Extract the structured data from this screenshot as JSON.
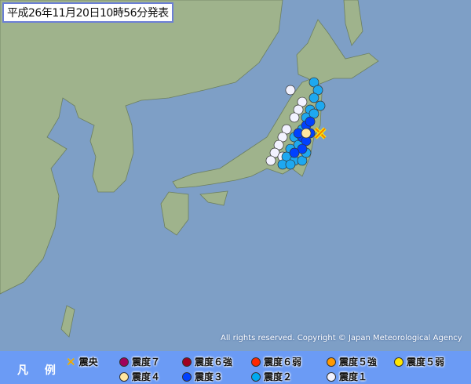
{
  "title": "平成26年11月20日10時56分発表",
  "copyright": "All rights reserved. Copyright © Japan Meteorological Agency",
  "colors": {
    "ocean": "#7e9fc6",
    "land": "#9fb38c",
    "legend_bg": "#6b9bf5"
  },
  "epicenter": {
    "lat": 37.62,
    "lon": 141.25
  },
  "legend": {
    "title": "凡 例",
    "epicenter_label": "震央",
    "items": [
      {
        "label": "震度７",
        "color": "#a0005a"
      },
      {
        "label": "震度６強",
        "color": "#a00020"
      },
      {
        "label": "震度６弱",
        "color": "#ff2800"
      },
      {
        "label": "震度５強",
        "color": "#ff9900"
      },
      {
        "label": "震度５弱",
        "color": "#ffe600"
      },
      {
        "label": "震度４",
        "color": "#ffe6a0"
      },
      {
        "label": "震度３",
        "color": "#0041ff"
      },
      {
        "label": "震度２",
        "color": "#00aaf0"
      },
      {
        "label": "震度１",
        "color": "#f2f2ff"
      }
    ]
  },
  "intensity_colors": {
    "1": "#f2f2ff",
    "2": "#1ea8f0",
    "3": "#0041ff",
    "4": "#ffe6a0"
  },
  "stations": [
    {
      "lat": 39.79,
      "lon": 140.3,
      "i": 1
    },
    {
      "lat": 39.25,
      "lon": 139.99,
      "i": 1
    },
    {
      "lat": 38.71,
      "lon": 139.67,
      "i": 1
    },
    {
      "lat": 37.89,
      "lon": 139.04,
      "i": 1
    },
    {
      "lat": 37.35,
      "lon": 138.72,
      "i": 1
    },
    {
      "lat": 36.8,
      "lon": 138.41,
      "i": 1
    },
    {
      "lat": 36.26,
      "lon": 138.09,
      "i": 1
    },
    {
      "lat": 35.72,
      "lon": 137.77,
      "i": 1
    },
    {
      "lat": 35.99,
      "lon": 138.72,
      "i": 1
    },
    {
      "lat": 40.61,
      "lon": 139.35,
      "i": 1
    },
    {
      "lat": 41.15,
      "lon": 141.25,
      "i": 2
    },
    {
      "lat": 40.61,
      "lon": 141.57,
      "i": 2
    },
    {
      "lat": 40.07,
      "lon": 141.25,
      "i": 2
    },
    {
      "lat": 39.52,
      "lon": 141.76,
      "i": 2
    },
    {
      "lat": 39.25,
      "lon": 140.94,
      "i": 2
    },
    {
      "lat": 38.71,
      "lon": 140.62,
      "i": 2
    },
    {
      "lat": 38.98,
      "lon": 141.25,
      "i": 2
    },
    {
      "lat": 37.89,
      "lon": 140.3,
      "i": 2
    },
    {
      "lat": 37.35,
      "lon": 139.67,
      "i": 2
    },
    {
      "lat": 36.8,
      "lon": 139.99,
      "i": 2
    },
    {
      "lat": 36.53,
      "lon": 139.35,
      "i": 2
    },
    {
      "lat": 35.99,
      "lon": 139.04,
      "i": 2
    },
    {
      "lat": 35.72,
      "lon": 139.67,
      "i": 2
    },
    {
      "lat": 35.72,
      "lon": 140.3,
      "i": 2
    },
    {
      "lat": 36.26,
      "lon": 140.62,
      "i": 2
    },
    {
      "lat": 35.45,
      "lon": 138.72,
      "i": 2
    },
    {
      "lat": 35.45,
      "lon": 139.35,
      "i": 2
    },
    {
      "lat": 38.16,
      "lon": 140.62,
      "i": 3
    },
    {
      "lat": 37.62,
      "lon": 140.94,
      "i": 3
    },
    {
      "lat": 37.35,
      "lon": 140.3,
      "i": 3
    },
    {
      "lat": 37.62,
      "lon": 139.99,
      "i": 3
    },
    {
      "lat": 37.08,
      "lon": 140.62,
      "i": 3
    },
    {
      "lat": 36.53,
      "lon": 140.3,
      "i": 3
    },
    {
      "lat": 36.26,
      "lon": 139.67,
      "i": 3
    },
    {
      "lat": 38.43,
      "lon": 140.94,
      "i": 3
    },
    {
      "lat": 37.62,
      "lon": 140.62,
      "i": 4
    }
  ]
}
